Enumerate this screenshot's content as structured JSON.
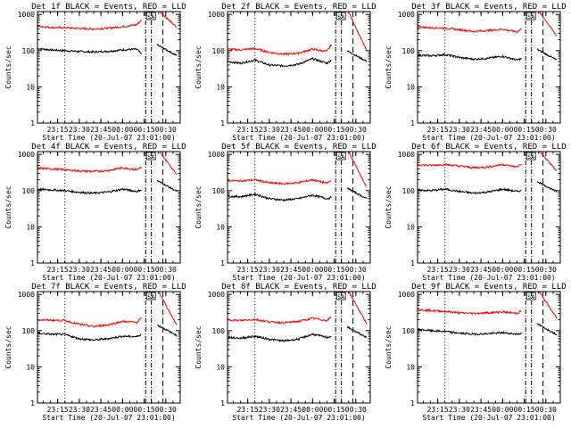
{
  "page": {
    "ylabel": "Counts/sec",
    "xlabel": "Start Time (20-Jul-07 23:01:00)",
    "xticks": [
      "23:15",
      "23:30",
      "23:45",
      "00:00",
      "00:15",
      "00:30"
    ],
    "yticks": [
      "1",
      "10",
      "100",
      "1000"
    ],
    "saa_label": "SA",
    "colors": {
      "events": "#000000",
      "lld": "#ff0000",
      "axis": "#000000"
    }
  },
  "chart_data": [
    {
      "type": "line",
      "title": "Det 1f BLACK = Events, RED = LLD",
      "yscale": "log",
      "ylim": [
        1,
        1200
      ],
      "xlim": [
        "23:01",
        "00:40"
      ],
      "x": [
        "23:01",
        "23:10",
        "23:20",
        "23:30",
        "23:40",
        "23:50",
        "00:00",
        "00:10",
        "00:13"
      ],
      "series": [
        {
          "name": "Events",
          "values": [
            115,
            105,
            100,
            95,
            92,
            96,
            105,
            110,
            80
          ]
        },
        {
          "name": "LLD",
          "values": [
            480,
            440,
            430,
            410,
            400,
            420,
            460,
            520,
            700
          ]
        }
      ]
    },
    {
      "type": "line",
      "title": "Det 2f BLACK = Events, RED = LLD",
      "yscale": "log",
      "ylim": [
        1,
        1200
      ],
      "xlim": [
        "23:01",
        "00:40"
      ],
      "x": [
        "23:01",
        "23:10",
        "23:20",
        "23:30",
        "23:40",
        "23:50",
        "00:00",
        "00:10",
        "00:13"
      ],
      "series": [
        {
          "name": "Events",
          "values": [
            50,
            45,
            55,
            40,
            38,
            42,
            60,
            45,
            55
          ]
        },
        {
          "name": "LLD",
          "values": [
            110,
            105,
            115,
            90,
            80,
            85,
            110,
            95,
            150
          ]
        }
      ]
    },
    {
      "type": "line",
      "title": "Det 3f BLACK = Events, RED = LLD",
      "yscale": "log",
      "ylim": [
        1,
        1200
      ],
      "xlim": [
        "23:01",
        "00:40"
      ],
      "x": [
        "23:01",
        "23:10",
        "23:20",
        "23:30",
        "23:40",
        "23:50",
        "00:00",
        "00:10",
        "00:13"
      ],
      "series": [
        {
          "name": "Events",
          "values": [
            75,
            72,
            78,
            65,
            58,
            62,
            70,
            55,
            60
          ]
        },
        {
          "name": "LLD",
          "values": [
            460,
            430,
            420,
            380,
            340,
            360,
            390,
            330,
            400
          ]
        }
      ]
    },
    {
      "type": "line",
      "title": "Det 4f BLACK = Events, RED = LLD",
      "yscale": "log",
      "ylim": [
        1,
        1200
      ],
      "xlim": [
        "23:01",
        "00:40"
      ],
      "x": [
        "23:01",
        "23:10",
        "23:20",
        "23:30",
        "23:40",
        "23:50",
        "00:00",
        "00:10",
        "00:13"
      ],
      "series": [
        {
          "name": "Events",
          "values": [
            110,
            105,
            100,
            90,
            85,
            92,
            110,
            95,
            105
          ]
        },
        {
          "name": "LLD",
          "values": [
            420,
            400,
            380,
            350,
            340,
            360,
            430,
            380,
            450
          ]
        }
      ]
    },
    {
      "type": "line",
      "title": "Det 5f BLACK = Events, RED = LLD",
      "yscale": "log",
      "ylim": [
        1,
        1200
      ],
      "xlim": [
        "23:01",
        "00:40"
      ],
      "x": [
        "23:01",
        "23:10",
        "23:20",
        "23:30",
        "23:40",
        "23:50",
        "00:00",
        "00:10",
        "00:13"
      ],
      "series": [
        {
          "name": "Events",
          "values": [
            70,
            68,
            80,
            60,
            55,
            60,
            75,
            60,
            65
          ]
        },
        {
          "name": "LLD",
          "values": [
            190,
            185,
            200,
            165,
            155,
            165,
            200,
            160,
            190
          ]
        }
      ]
    },
    {
      "type": "line",
      "title": "Det 6f BLACK = Events, RED = LLD",
      "yscale": "log",
      "ylim": [
        1,
        1200
      ],
      "xlim": [
        "23:01",
        "00:40"
      ],
      "x": [
        "23:01",
        "23:10",
        "23:20",
        "23:30",
        "23:40",
        "23:50",
        "00:00",
        "00:10",
        "00:13"
      ],
      "series": [
        {
          "name": "Events",
          "values": [
            105,
            100,
            110,
            95,
            85,
            92,
            110,
            95,
            100
          ]
        },
        {
          "name": "LLD",
          "values": [
            520,
            500,
            530,
            480,
            430,
            450,
            530,
            450,
            560
          ]
        }
      ]
    },
    {
      "type": "line",
      "title": "Det 7f BLACK = Events, RED = LLD",
      "yscale": "log",
      "ylim": [
        1,
        1200
      ],
      "xlim": [
        "23:01",
        "00:40"
      ],
      "x": [
        "23:01",
        "23:10",
        "23:20",
        "23:30",
        "23:40",
        "23:50",
        "00:00",
        "00:10",
        "00:13"
      ],
      "series": [
        {
          "name": "Events",
          "values": [
            85,
            80,
            78,
            60,
            55,
            60,
            70,
            68,
            80
          ]
        },
        {
          "name": "LLD",
          "values": [
            200,
            195,
            190,
            150,
            130,
            145,
            180,
            170,
            220
          ]
        }
      ]
    },
    {
      "type": "line",
      "title": "Det 8f BLACK = Events, RED = LLD",
      "yscale": "log",
      "ylim": [
        1,
        1200
      ],
      "xlim": [
        "23:01",
        "00:40"
      ],
      "x": [
        "23:01",
        "23:10",
        "23:20",
        "23:30",
        "23:40",
        "23:50",
        "00:00",
        "00:10",
        "00:13"
      ],
      "series": [
        {
          "name": "Events",
          "values": [
            65,
            62,
            70,
            58,
            52,
            58,
            80,
            65,
            70
          ]
        },
        {
          "name": "LLD",
          "values": [
            200,
            190,
            205,
            175,
            165,
            180,
            220,
            190,
            240
          ]
        }
      ]
    },
    {
      "type": "line",
      "title": "Det 9f BLACK = Events, RED = LLD",
      "yscale": "log",
      "ylim": [
        1,
        1200
      ],
      "xlim": [
        "23:01",
        "00:40"
      ],
      "x": [
        "23:01",
        "23:10",
        "23:20",
        "23:30",
        "23:40",
        "23:50",
        "00:00",
        "00:10",
        "00:13"
      ],
      "series": [
        {
          "name": "Events",
          "values": [
            110,
            100,
            95,
            85,
            80,
            82,
            88,
            80,
            85
          ]
        },
        {
          "name": "LLD",
          "values": [
            380,
            360,
            340,
            310,
            300,
            310,
            330,
            300,
            350
          ]
        }
      ]
    }
  ]
}
